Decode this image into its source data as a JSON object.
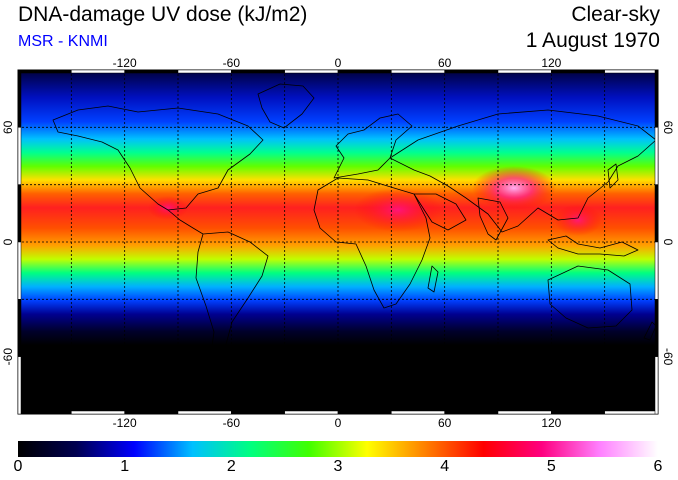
{
  "header": {
    "title": "DNA-damage UV dose (kJ/m2)",
    "subtitle": "MSR - KNMI",
    "subtitle_color": "#0000ff",
    "condition": "Clear-sky",
    "date": "1 August 1970"
  },
  "map": {
    "projection": "equirectangular",
    "lon_range": [
      -180,
      180
    ],
    "lat_range": [
      -90,
      90
    ],
    "lon_gridlines": [
      -150,
      -120,
      -90,
      -60,
      -30,
      0,
      30,
      60,
      90,
      120,
      150
    ],
    "lat_gridlines": [
      -60,
      -30,
      0,
      30,
      60
    ],
    "lon_tick_labels": [
      "-120",
      "-60",
      "0",
      "60",
      "120"
    ],
    "lat_tick_labels": [
      "60",
      "0",
      "-60"
    ],
    "grid_style": "dotted",
    "land_outline_color": "#000000",
    "background_color": "#000000"
  },
  "colorbar": {
    "min": 0,
    "max": 6,
    "tick_labels": [
      "0",
      "1",
      "2",
      "3",
      "4",
      "5",
      "6"
    ],
    "colors": [
      "#000000",
      "#000050",
      "#0000ff",
      "#00c0ff",
      "#00ff80",
      "#40ff00",
      "#ffff00",
      "#ff8000",
      "#ff0000",
      "#ff0080",
      "#ff80ff",
      "#ffffff"
    ]
  }
}
